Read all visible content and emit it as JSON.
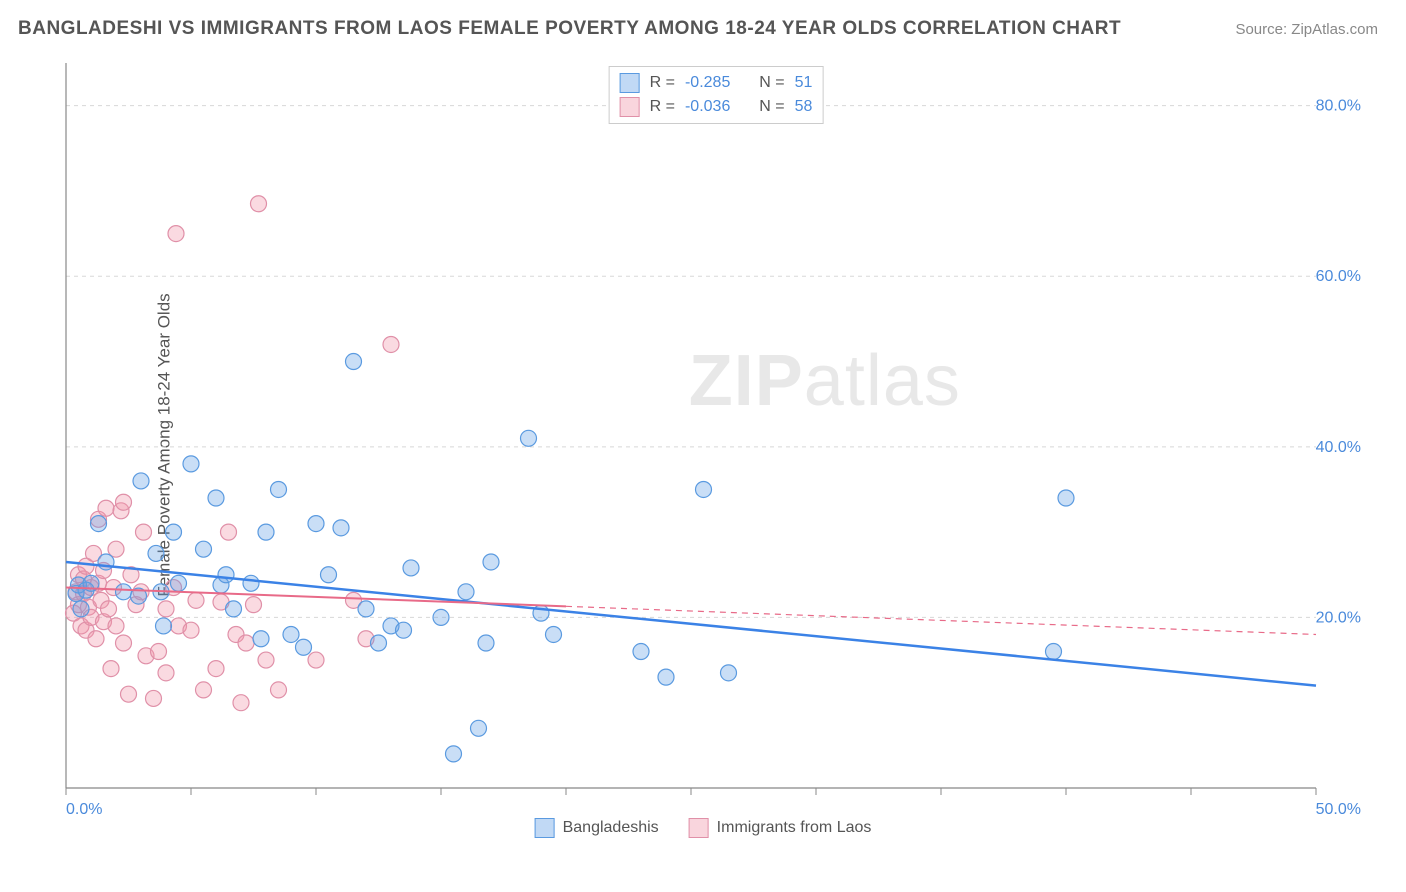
{
  "header": {
    "title": "BANGLADESHI VS IMMIGRANTS FROM LAOS FEMALE POVERTY AMONG 18-24 YEAR OLDS CORRELATION CHART",
    "source": "Source: ZipAtlas.com"
  },
  "watermark": {
    "prefix": "ZIP",
    "suffix": "atlas"
  },
  "chart": {
    "type": "scatter",
    "y_axis_label": "Female Poverty Among 18-24 Year Olds",
    "background_color": "#ffffff",
    "grid_color": "#d8d8d8",
    "axis_color": "#888888",
    "xlim": [
      0,
      50
    ],
    "ylim": [
      0,
      85
    ],
    "x_ticks": [
      0,
      5,
      10,
      15,
      20,
      25,
      30,
      35,
      40,
      45,
      50
    ],
    "x_tick_labels": {
      "0": "0.0%",
      "50": "50.0%"
    },
    "y_ticks": [
      20,
      40,
      60,
      80
    ],
    "y_tick_labels": {
      "20": "20.0%",
      "40": "40.0%",
      "60": "60.0%",
      "80": "80.0%"
    },
    "marker_radius": 8,
    "marker_opacity": 0.35,
    "label_fontsize": 16,
    "label_color": "#4a8adb",
    "series": [
      {
        "name": "Bangladeshis",
        "color_fill": "rgba(100,160,230,0.35)",
        "color_stroke": "#5a9ae0",
        "R": "-0.285",
        "N": "51",
        "trend": {
          "x1": 0,
          "y1": 26.5,
          "x2": 50,
          "y2": 12.0,
          "solid_until_x": 50,
          "stroke": "#3b82e6",
          "width": 2.5
        },
        "points": [
          [
            0.4,
            22.8
          ],
          [
            0.5,
            23.8
          ],
          [
            0.6,
            21.0
          ],
          [
            0.8,
            23.2
          ],
          [
            1.0,
            24.0
          ],
          [
            1.3,
            31.0
          ],
          [
            1.6,
            26.5
          ],
          [
            2.3,
            23.0
          ],
          [
            2.9,
            22.5
          ],
          [
            3.0,
            36.0
          ],
          [
            3.6,
            27.5
          ],
          [
            3.8,
            23.0
          ],
          [
            3.9,
            19.0
          ],
          [
            4.3,
            30.0
          ],
          [
            4.5,
            24.0
          ],
          [
            5.0,
            38.0
          ],
          [
            5.5,
            28.0
          ],
          [
            6.0,
            34.0
          ],
          [
            6.2,
            23.8
          ],
          [
            6.4,
            25.0
          ],
          [
            6.7,
            21.0
          ],
          [
            7.4,
            24.0
          ],
          [
            7.8,
            17.5
          ],
          [
            8.0,
            30.0
          ],
          [
            8.5,
            35.0
          ],
          [
            9.0,
            18.0
          ],
          [
            9.5,
            16.5
          ],
          [
            10.0,
            31.0
          ],
          [
            10.5,
            25.0
          ],
          [
            11.0,
            30.5
          ],
          [
            11.5,
            50.0
          ],
          [
            12.0,
            21.0
          ],
          [
            12.5,
            17.0
          ],
          [
            13.0,
            19.0
          ],
          [
            13.5,
            18.5
          ],
          [
            13.8,
            25.8
          ],
          [
            15.0,
            20.0
          ],
          [
            15.5,
            4.0
          ],
          [
            16.0,
            23.0
          ],
          [
            16.5,
            7.0
          ],
          [
            16.8,
            17.0
          ],
          [
            17.0,
            26.5
          ],
          [
            18.5,
            41.0
          ],
          [
            19.0,
            20.5
          ],
          [
            19.5,
            18.0
          ],
          [
            23.0,
            16.0
          ],
          [
            24.0,
            13.0
          ],
          [
            25.5,
            35.0
          ],
          [
            26.5,
            13.5
          ],
          [
            39.5,
            16.0
          ],
          [
            40.0,
            34.0
          ]
        ]
      },
      {
        "name": "Immigrants from Laos",
        "color_fill": "rgba(240,150,170,0.35)",
        "color_stroke": "#e090a8",
        "R": "-0.036",
        "N": "58",
        "trend": {
          "x1": 0,
          "y1": 23.5,
          "x2": 50,
          "y2": 18.0,
          "solid_until_x": 20,
          "stroke": "#e86a88",
          "width": 2
        },
        "points": [
          [
            0.3,
            20.5
          ],
          [
            0.4,
            23.0
          ],
          [
            0.5,
            21.5
          ],
          [
            0.5,
            25.0
          ],
          [
            0.6,
            19.0
          ],
          [
            0.7,
            24.5
          ],
          [
            0.7,
            22.8
          ],
          [
            0.8,
            18.5
          ],
          [
            0.8,
            26.0
          ],
          [
            0.9,
            21.2
          ],
          [
            1.0,
            23.5
          ],
          [
            1.0,
            20.0
          ],
          [
            1.1,
            27.5
          ],
          [
            1.2,
            17.5
          ],
          [
            1.3,
            24.0
          ],
          [
            1.3,
            31.5
          ],
          [
            1.4,
            22.0
          ],
          [
            1.5,
            25.5
          ],
          [
            1.5,
            19.5
          ],
          [
            1.6,
            32.8
          ],
          [
            1.7,
            21.0
          ],
          [
            1.8,
            14.0
          ],
          [
            1.9,
            23.5
          ],
          [
            2.0,
            28.0
          ],
          [
            2.0,
            19.0
          ],
          [
            2.2,
            32.5
          ],
          [
            2.3,
            17.0
          ],
          [
            2.3,
            33.5
          ],
          [
            2.5,
            11.0
          ],
          [
            2.6,
            25.0
          ],
          [
            2.8,
            21.5
          ],
          [
            3.0,
            23.0
          ],
          [
            3.1,
            30.0
          ],
          [
            3.2,
            15.5
          ],
          [
            3.5,
            10.5
          ],
          [
            3.7,
            16.0
          ],
          [
            4.0,
            21.0
          ],
          [
            4.0,
            13.5
          ],
          [
            4.3,
            23.5
          ],
          [
            4.4,
            65.0
          ],
          [
            4.5,
            19.0
          ],
          [
            5.0,
            18.5
          ],
          [
            5.2,
            22.0
          ],
          [
            5.5,
            11.5
          ],
          [
            6.0,
            14.0
          ],
          [
            6.2,
            21.8
          ],
          [
            6.5,
            30.0
          ],
          [
            6.8,
            18.0
          ],
          [
            7.0,
            10.0
          ],
          [
            7.2,
            17.0
          ],
          [
            7.5,
            21.5
          ],
          [
            7.7,
            68.5
          ],
          [
            8.0,
            15.0
          ],
          [
            8.5,
            11.5
          ],
          [
            10.0,
            15.0
          ],
          [
            11.5,
            22.0
          ],
          [
            12.0,
            17.5
          ],
          [
            13.0,
            52.0
          ]
        ]
      }
    ]
  },
  "legend_bottom": [
    {
      "swatch": "blue",
      "label": "Bangladeshis"
    },
    {
      "swatch": "pink",
      "label": "Immigrants from Laos"
    }
  ]
}
